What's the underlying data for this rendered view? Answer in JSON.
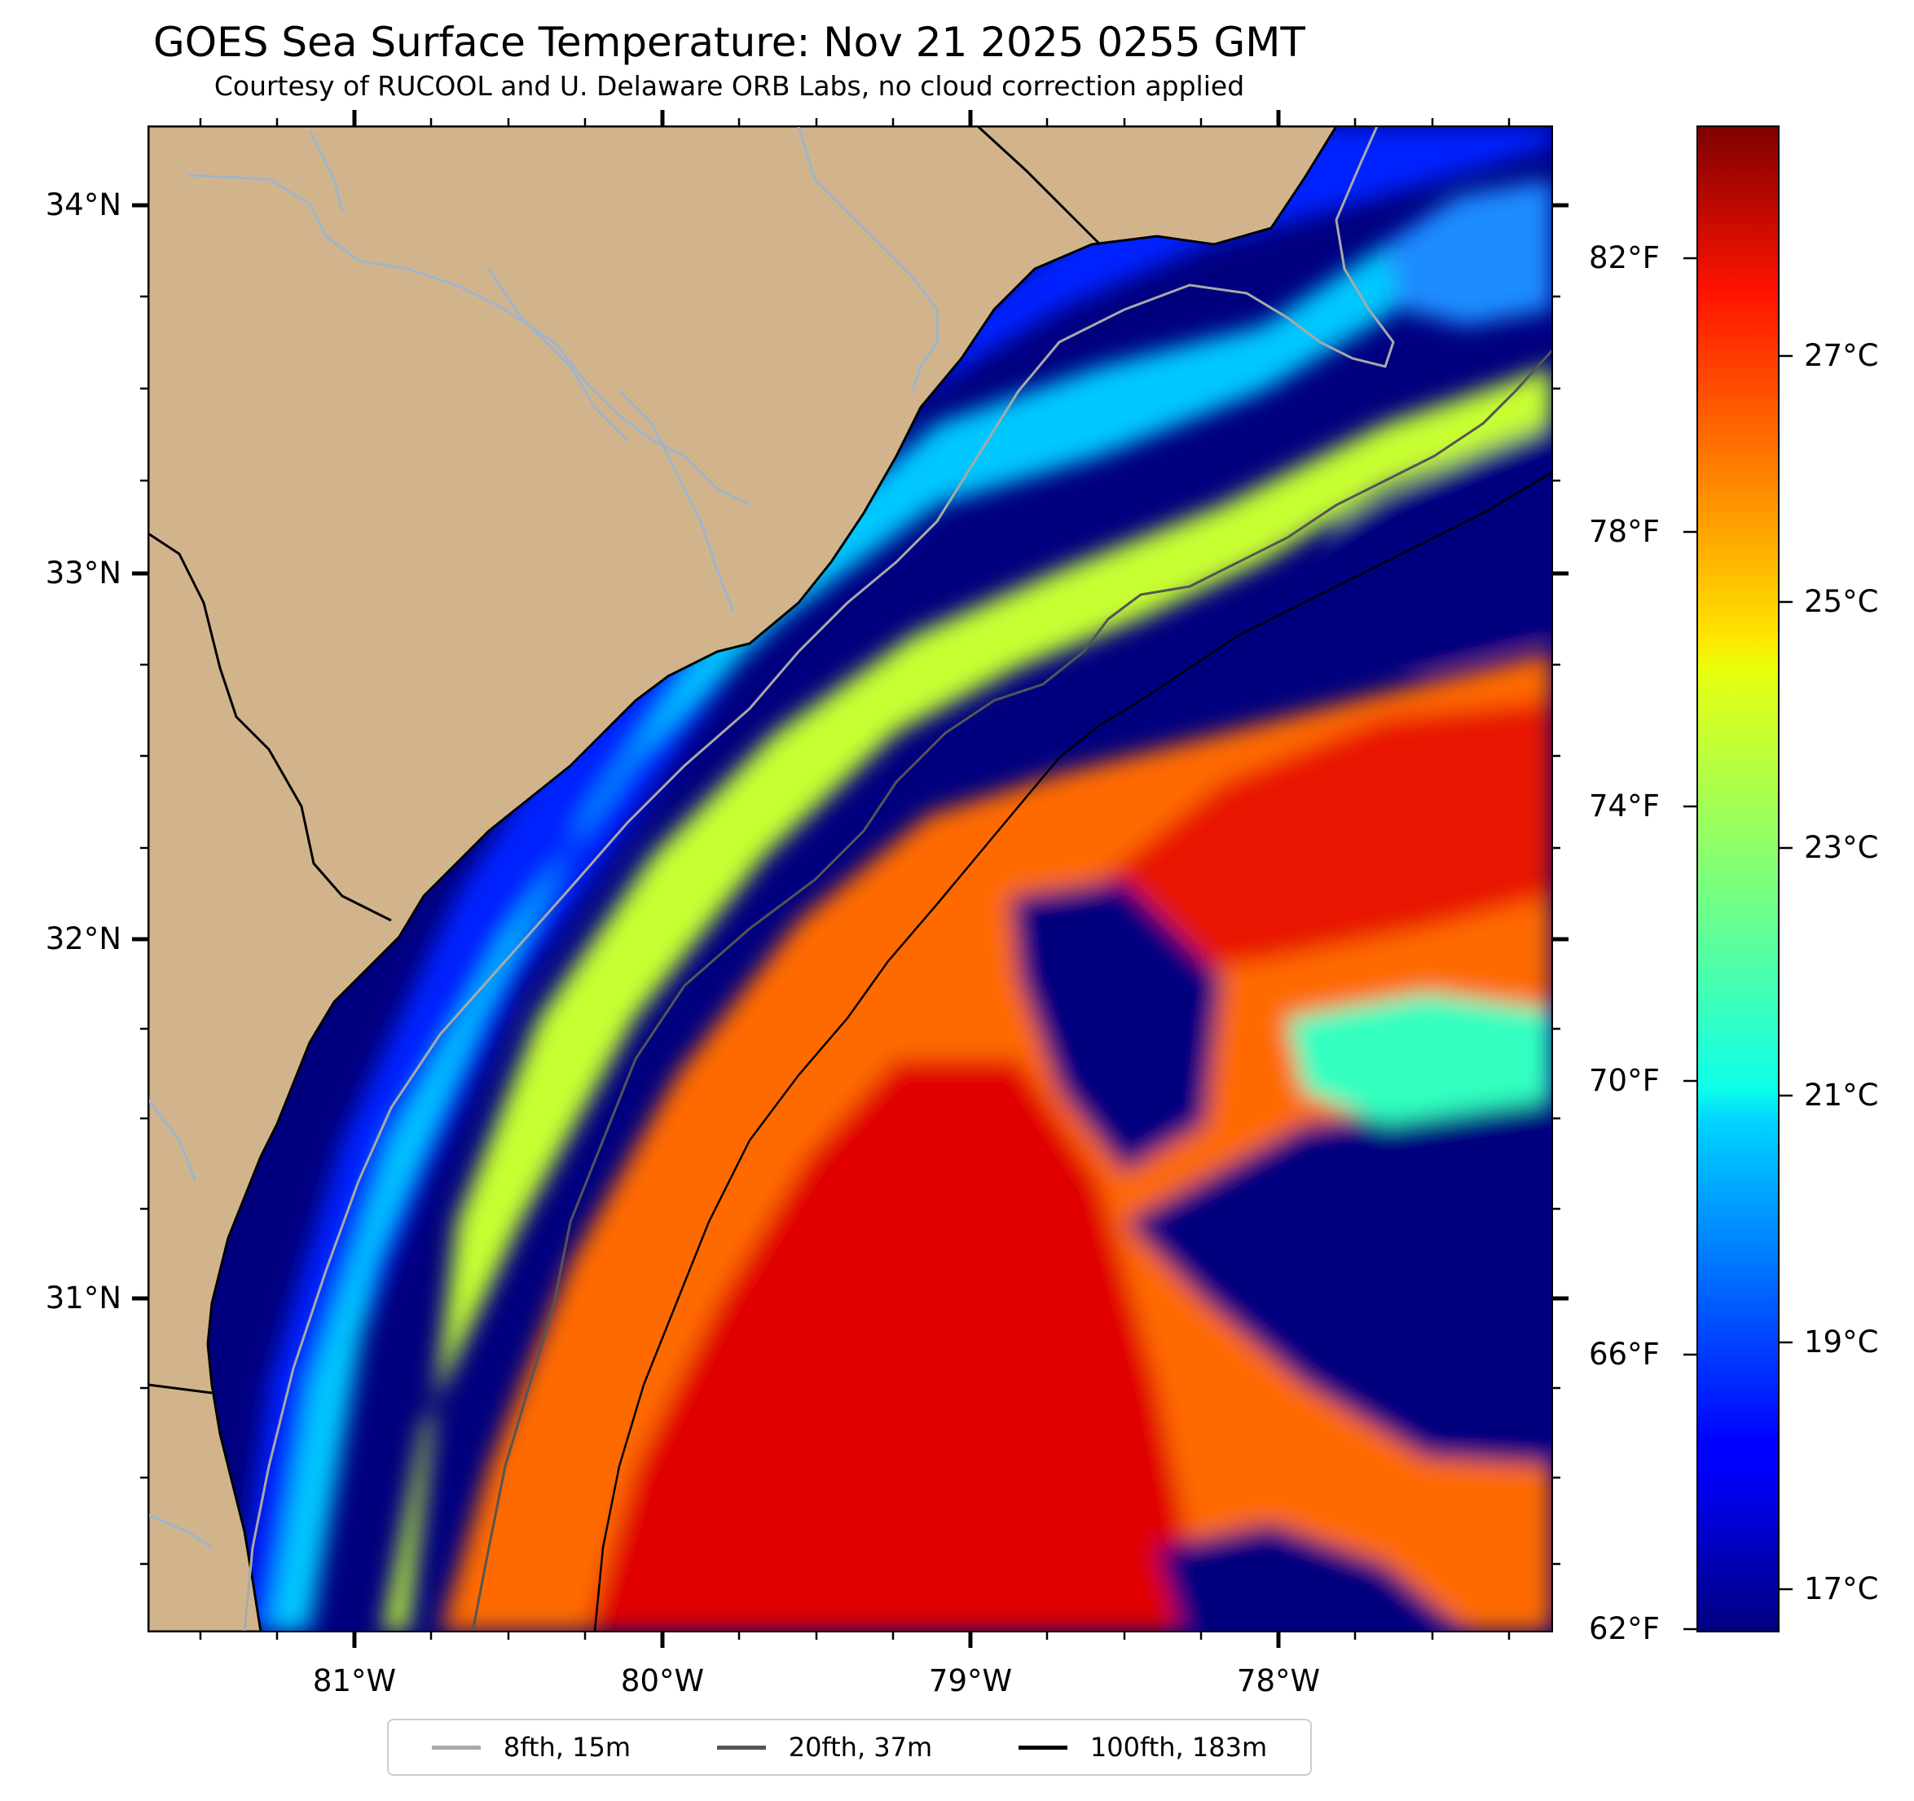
{
  "title": "GOES Sea Surface Temperature: Nov 21 2025 0255 GMT",
  "subtitle": "Courtesy of RUCOOL and U. Delaware ORB Labs, no cloud correction applied",
  "map": {
    "latitude_labels": [
      "34°N",
      "33°N",
      "32°N",
      "31°N"
    ],
    "longitude_labels": [
      "81°W",
      "80°W",
      "79°W",
      "78°W"
    ],
    "land_color": "#d2b48c",
    "coast_color": "#000000",
    "river_color": "#9db5cf",
    "colormap": "jet"
  },
  "colorbar": {
    "celsius_labels": [
      "27°C",
      "25°C",
      "23°C",
      "21°C",
      "19°C",
      "17°C"
    ],
    "fahrenheit_labels": [
      "82°F",
      "78°F",
      "74°F",
      "70°F",
      "66°F",
      "62°F"
    ]
  },
  "legend": {
    "items": [
      {
        "label": "8fth, 15m",
        "color": "#a9a9a9"
      },
      {
        "label": "20fth, 37m",
        "color": "#555555"
      },
      {
        "label": "100fth, 183m",
        "color": "#000000"
      }
    ]
  }
}
